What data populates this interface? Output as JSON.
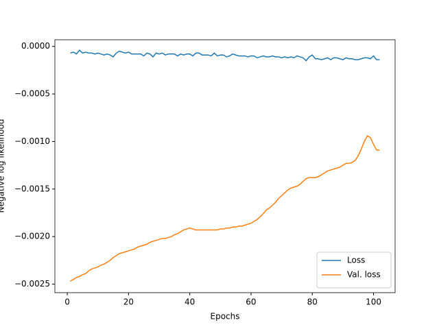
{
  "chart_data": {
    "type": "line",
    "xlabel": "Epochs",
    "ylabel": "Negative log likelihood",
    "x": [
      1,
      2,
      3,
      4,
      5,
      6,
      7,
      8,
      9,
      10,
      11,
      12,
      13,
      14,
      15,
      16,
      17,
      18,
      19,
      20,
      21,
      22,
      23,
      24,
      25,
      26,
      27,
      28,
      29,
      30,
      31,
      32,
      33,
      34,
      35,
      36,
      37,
      38,
      39,
      40,
      41,
      42,
      43,
      44,
      45,
      46,
      47,
      48,
      49,
      50,
      51,
      52,
      53,
      54,
      55,
      56,
      57,
      58,
      59,
      60,
      61,
      62,
      63,
      64,
      65,
      66,
      67,
      68,
      69,
      70,
      71,
      72,
      73,
      74,
      75,
      76,
      77,
      78,
      79,
      80,
      81,
      82,
      83,
      84,
      85,
      86,
      87,
      88,
      89,
      90,
      91,
      92,
      93,
      94,
      95,
      96,
      97,
      98,
      99,
      100,
      101,
      102
    ],
    "series": [
      {
        "name": "Loss",
        "color": "#1f77b4",
        "values": [
          -7e-05,
          -6e-05,
          -8e-05,
          -4e-05,
          -7e-05,
          -6e-05,
          -7e-05,
          -7e-05,
          -8e-05,
          -7e-05,
          -8e-05,
          -9e-05,
          -8e-05,
          -9e-05,
          -0.00011,
          -7e-05,
          -5e-05,
          -6e-05,
          -7e-05,
          -6e-05,
          -8e-05,
          -8e-05,
          -8e-05,
          -8e-05,
          -0.0001,
          -7e-05,
          -8e-05,
          -0.00011,
          -7e-05,
          -8e-05,
          -7e-05,
          -9e-05,
          -8e-05,
          -8e-05,
          -8e-05,
          -0.0001,
          -8e-05,
          -9e-05,
          -8e-05,
          -8e-05,
          -0.0001,
          -7e-05,
          -7e-05,
          -9e-05,
          -9e-05,
          -9e-05,
          -0.0001,
          -7e-05,
          -0.0001,
          -9e-05,
          -9e-05,
          -0.00011,
          -0.0001,
          -8e-05,
          -9e-05,
          -0.0001,
          -0.0001,
          -0.0001,
          -0.00011,
          -0.0001,
          -0.0001,
          -0.00012,
          -0.00011,
          -0.0001,
          -0.00011,
          -0.00011,
          -0.0001,
          -0.00011,
          -0.00011,
          -0.00012,
          -0.00011,
          -0.00012,
          -0.00011,
          -0.00012,
          -0.0001,
          -0.00011,
          -0.00012,
          -0.00015,
          -0.00011,
          -9e-05,
          -0.00013,
          -0.00013,
          -0.00014,
          -0.00013,
          -0.00012,
          -0.00014,
          -0.00012,
          -0.00012,
          -0.00013,
          -0.00014,
          -0.00012,
          -0.00013,
          -0.00013,
          -0.00014,
          -0.00014,
          -0.00013,
          -0.00012,
          -0.00012,
          -0.00013,
          -0.0001,
          -0.00014,
          -0.00014
        ]
      },
      {
        "name": "Val. loss",
        "color": "#ff7f0e",
        "values": [
          -0.00247,
          -0.00245,
          -0.00243,
          -0.00242,
          -0.0024,
          -0.00239,
          -0.00236,
          -0.00234,
          -0.00233,
          -0.00232,
          -0.0023,
          -0.00229,
          -0.00227,
          -0.00225,
          -0.00222,
          -0.0022,
          -0.00218,
          -0.00217,
          -0.00216,
          -0.00215,
          -0.00214,
          -0.00213,
          -0.00211,
          -0.0021,
          -0.00209,
          -0.00208,
          -0.00206,
          -0.00205,
          -0.00204,
          -0.00203,
          -0.00202,
          -0.00202,
          -0.00201,
          -0.002,
          -0.00198,
          -0.00197,
          -0.00195,
          -0.00193,
          -0.00192,
          -0.00191,
          -0.00192,
          -0.00193,
          -0.00193,
          -0.00193,
          -0.00193,
          -0.00193,
          -0.00193,
          -0.00193,
          -0.00193,
          -0.00192,
          -0.00192,
          -0.00191,
          -0.00191,
          -0.0019,
          -0.0019,
          -0.00189,
          -0.00189,
          -0.00188,
          -0.00187,
          -0.00186,
          -0.00184,
          -0.00182,
          -0.00179,
          -0.00176,
          -0.00172,
          -0.0017,
          -0.00167,
          -0.00164,
          -0.0016,
          -0.00157,
          -0.00154,
          -0.00151,
          -0.00149,
          -0.00148,
          -0.00147,
          -0.00145,
          -0.00142,
          -0.00139,
          -0.00138,
          -0.00138,
          -0.00138,
          -0.00137,
          -0.00135,
          -0.00133,
          -0.00131,
          -0.0013,
          -0.00129,
          -0.00128,
          -0.00127,
          -0.00125,
          -0.00123,
          -0.00123,
          -0.00122,
          -0.0012,
          -0.00115,
          -0.00108,
          -0.001,
          -0.00094,
          -0.00096,
          -0.00103,
          -0.00109,
          -0.00109
        ]
      }
    ],
    "xlim": [
      -4.05,
      107.05
    ],
    "xticks": [
      0,
      20,
      40,
      60,
      80,
      100
    ],
    "ylim": [
      -0.00259,
      7e-05
    ],
    "yticks": [
      {
        "value": 0,
        "label": "0.0000"
      },
      {
        "value": -0.0005,
        "label": "−0.0005"
      },
      {
        "value": -0.001,
        "label": "−0.0010"
      },
      {
        "value": -0.0015,
        "label": "−0.0015"
      },
      {
        "value": -0.002,
        "label": "−0.0020"
      },
      {
        "value": -0.0025,
        "label": "−0.0025"
      }
    ],
    "grid": false,
    "legend": "lower right"
  }
}
